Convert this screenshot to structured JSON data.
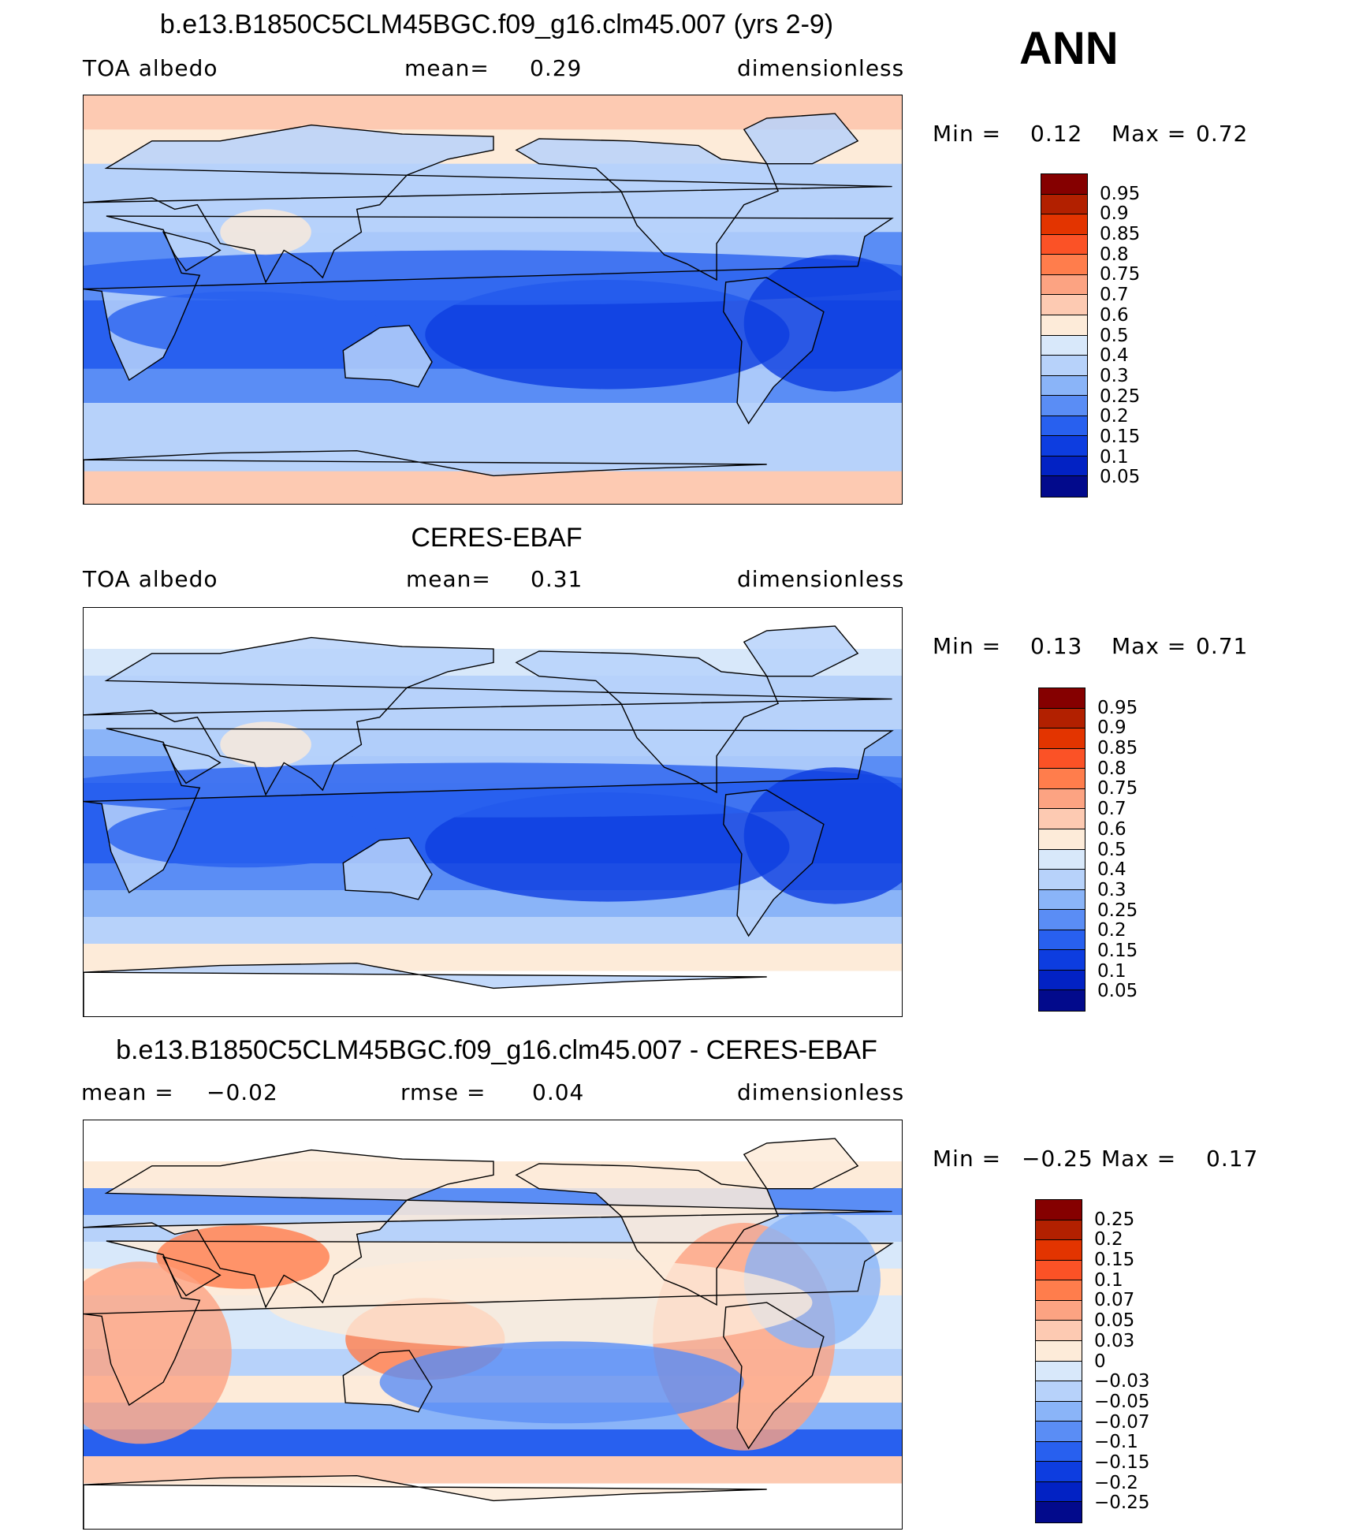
{
  "season_label": "ANN",
  "colors": {
    "model_scale": [
      "#850000",
      "#b22000",
      "#e33400",
      "#fb5226",
      "#ff7d4c",
      "#fca382",
      "#fdcab2",
      "#fdebd9",
      "#d8e8fa",
      "#b7d2fa",
      "#8ab4f8",
      "#5a8df5",
      "#2860ef",
      "#0d3de0",
      "#0222c4",
      "#020a8c"
    ],
    "diff_scale": [
      "#850000",
      "#b22000",
      "#e33400",
      "#fb5226",
      "#ff7d4c",
      "#fca382",
      "#fdcab2",
      "#fdebd9",
      "#d8e8fa",
      "#b7d2fa",
      "#8ab4f8",
      "#5a8df5",
      "#2860ef",
      "#0d3de0",
      "#0222c4",
      "#020a8c"
    ]
  },
  "panels": [
    {
      "title": "b.e13.B1850C5CLM45BGC.f09_g16.clm45.007 (yrs 2-9)",
      "left_label": "TOA  albedo",
      "mid_label": "mean=",
      "mid_value": "0.29",
      "right_label": "dimensionless",
      "min_label": "Min  =",
      "min_value": "0.12",
      "max_label": "Max  =",
      "max_value": "0.72",
      "colorbar_ticks": [
        "0.95",
        "0.9",
        "0.85",
        "0.8",
        "0.75",
        "0.7",
        "0.6",
        "0.5",
        "0.4",
        "0.3",
        "0.25",
        "0.2",
        "0.15",
        "0.1",
        "0.05"
      ]
    },
    {
      "title": "CERES-EBAF",
      "left_label": "TOA  albedo",
      "mid_label": "mean=",
      "mid_value": "0.31",
      "right_label": "dimensionless",
      "min_label": "Min  =",
      "min_value": "0.13",
      "max_label": "Max  =",
      "max_value": "0.71",
      "colorbar_ticks": [
        "0.95",
        "0.9",
        "0.85",
        "0.8",
        "0.75",
        "0.7",
        "0.6",
        "0.5",
        "0.4",
        "0.3",
        "0.25",
        "0.2",
        "0.15",
        "0.1",
        "0.05"
      ]
    },
    {
      "title": "b.e13.B1850C5CLM45BGC.f09_g16.clm45.007 - CERES-EBAF",
      "left_label": "mean  =",
      "left_value": "−0.02",
      "mid_label": "rmse  =",
      "mid_value": "0.04",
      "right_label": "dimensionless",
      "min_label": "Min  =",
      "min_value": "−0.25",
      "max_label": "Max  =",
      "max_value": "0.17",
      "colorbar_ticks": [
        "0.25",
        "0.2",
        "0.15",
        "0.1",
        "0.07",
        "0.05",
        "0.03",
        "0",
        "−0.03",
        "−0.05",
        "−0.07",
        "−0.1",
        "−0.15",
        "−0.2",
        "−0.25"
      ]
    }
  ],
  "chart_data": [
    {
      "type": "heatmap",
      "title": "b.e13.B1850C5CLM45BGC.f09_g16.clm45.007 (yrs 2-9)",
      "variable": "TOA  albedo",
      "units": "dimensionless",
      "mean": 0.29,
      "min": 0.12,
      "max": 0.72,
      "levels": [
        0.05,
        0.1,
        0.15,
        0.2,
        0.25,
        0.3,
        0.4,
        0.5,
        0.6,
        0.7,
        0.75,
        0.8,
        0.85,
        0.9,
        0.95
      ],
      "lat_band_values": [
        0.65,
        0.55,
        0.38,
        0.33,
        0.25,
        0.22,
        0.17,
        0.2,
        0.25,
        0.33,
        0.4,
        0.62
      ]
    },
    {
      "type": "heatmap",
      "title": "CERES-EBAF",
      "variable": "TOA  albedo",
      "units": "dimensionless",
      "mean": 0.31,
      "min": 0.13,
      "max": 0.71,
      "levels": [
        0.05,
        0.1,
        0.15,
        0.2,
        0.25,
        0.3,
        0.4,
        0.5,
        0.6,
        0.7,
        0.75,
        0.8,
        0.85,
        0.9,
        0.95
      ],
      "lat_band_values": [
        0.45,
        0.4,
        0.35,
        0.3,
        0.25,
        0.2,
        0.17,
        0.2,
        0.25,
        0.3,
        0.35,
        0.55
      ]
    },
    {
      "type": "heatmap",
      "title": "b.e13.B1850C5CLM45BGC.f09_g16.clm45.007 - CERES-EBAF",
      "units": "dimensionless",
      "mean": -0.02,
      "rmse": 0.04,
      "min": -0.25,
      "max": 0.17,
      "levels": [
        -0.25,
        -0.2,
        -0.15,
        -0.1,
        -0.07,
        -0.05,
        -0.03,
        0,
        0.03,
        0.05,
        0.07,
        0.1,
        0.15,
        0.2,
        0.25
      ],
      "lat_band_values": [
        0.02,
        -0.08,
        -0.04,
        -0.02,
        0.01,
        -0.02,
        0.0,
        -0.03,
        0.02,
        -0.05,
        -0.1,
        0.05
      ]
    }
  ]
}
